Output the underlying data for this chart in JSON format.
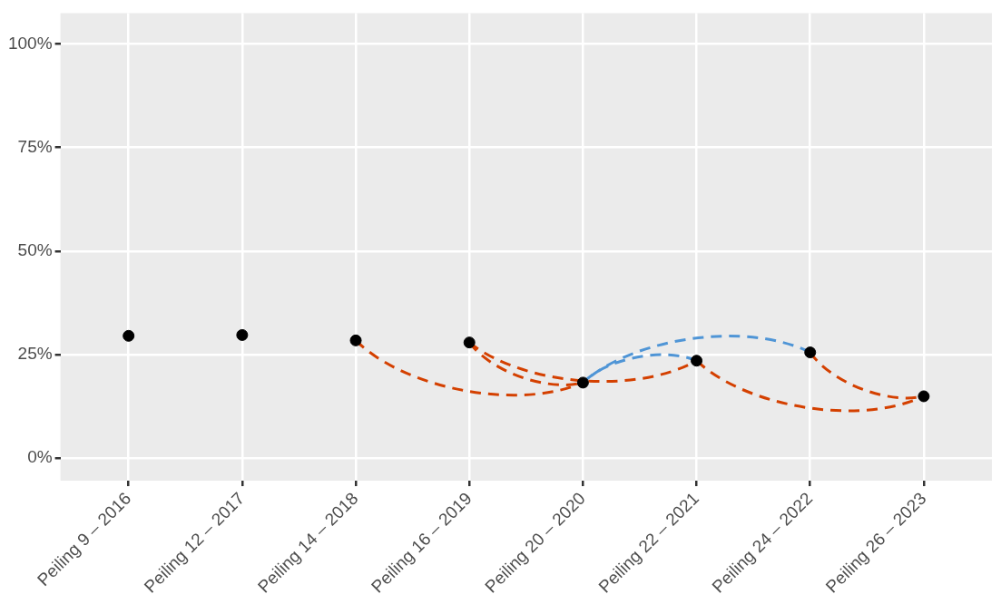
{
  "chart_data": {
    "type": "scatter",
    "categories": [
      "Peiling 9 – 2016",
      "Peiling 12 – 2017",
      "Peiling 14 – 2018",
      "Peiling 16 – 2019",
      "Peiling 20 – 2020",
      "Peiling 22 – 2021",
      "Peiling 24 – 2022",
      "Peiling 26 – 2023"
    ],
    "ylim": [
      -5.5,
      107.5
    ],
    "yticks": [
      {
        "value": 0,
        "label": "0%"
      },
      {
        "value": 25,
        "label": "25%"
      },
      {
        "value": 50,
        "label": "50%"
      },
      {
        "value": 75,
        "label": "75%"
      },
      {
        "value": 100,
        "label": "100%"
      }
    ],
    "grid": true,
    "legend": false,
    "series": [
      {
        "marker": "circle",
        "color": "#000000",
        "values": [
          29.5,
          29.7,
          28.4,
          27.9,
          18.2,
          23.5,
          25.5,
          14.9
        ]
      },
      {
        "type": "line",
        "line_style": "dashed",
        "color": "#d44000",
        "x": [
          "Peiling 14 – 2018",
          "Peiling 20 – 2020"
        ],
        "values": [
          28.4,
          18.2
        ]
      },
      {
        "type": "line",
        "line_style": "dashed",
        "color": "#d44000",
        "x": [
          "Peiling 16 – 2019",
          "Peiling 20 – 2020"
        ],
        "values": [
          27.9,
          18.2
        ]
      },
      {
        "type": "line",
        "line_style": "dashed",
        "color": "#d44000",
        "x": [
          "Peiling 16 – 2019",
          "Peiling 22 – 2021"
        ],
        "values": [
          27.9,
          23.5
        ]
      },
      {
        "type": "line",
        "line_style": "dashed",
        "color": "#d44000",
        "x": [
          "Peiling 22 – 2021",
          "Peiling 26 – 2023"
        ],
        "values": [
          23.5,
          14.9
        ]
      },
      {
        "type": "line",
        "line_style": "dashed",
        "color": "#d44000",
        "x": [
          "Peiling 24 – 2022",
          "Peiling 26 – 2023"
        ],
        "values": [
          25.5,
          14.9
        ]
      },
      {
        "type": "line",
        "line_style": "dashed",
        "color": "#4f95d6",
        "x": [
          "Peiling 22 – 2021",
          "Peiling 20 – 2020"
        ],
        "values": [
          23.5,
          18.2
        ]
      },
      {
        "type": "line",
        "line_style": "dashed",
        "color": "#4f95d6",
        "x": [
          "Peiling 24 – 2022",
          "Peiling 20 – 2020"
        ],
        "values": [
          25.5,
          18.2
        ]
      }
    ]
  }
}
